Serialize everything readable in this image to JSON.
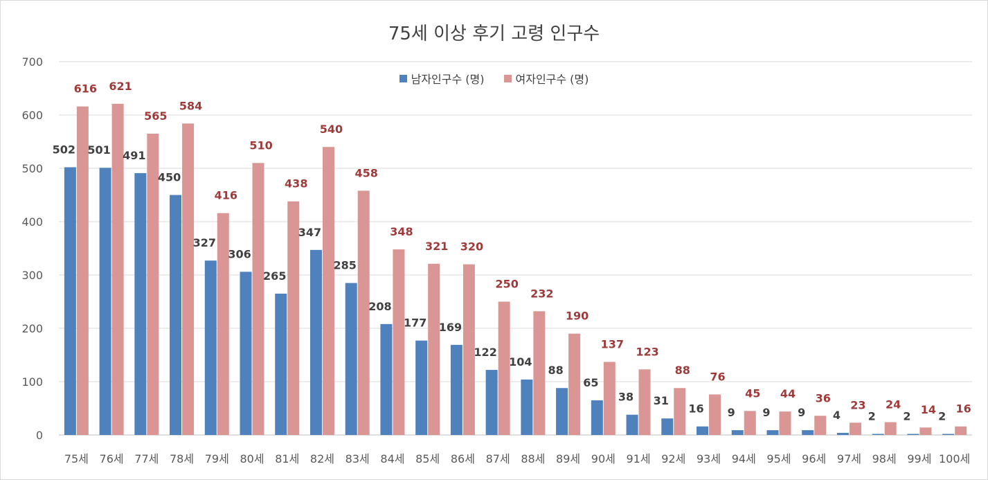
{
  "chart_data": {
    "type": "bar",
    "title": "75세 이상 후기 고령 인구수",
    "xlabel": "",
    "ylabel": "",
    "ylim": [
      0,
      700
    ],
    "yticks": [
      0,
      100,
      200,
      300,
      400,
      500,
      600,
      700
    ],
    "grid": true,
    "legend_position": "top-center",
    "categories": [
      "75세",
      "76세",
      "77세",
      "78세",
      "79세",
      "80세",
      "81세",
      "82세",
      "83세",
      "84세",
      "85세",
      "86세",
      "87세",
      "88세",
      "89세",
      "90세",
      "91세",
      "92세",
      "93세",
      "94세",
      "95세",
      "96세",
      "97세",
      "98세",
      "99세",
      "100세"
    ],
    "series": [
      {
        "name": "남자인구수 (명)",
        "color": "#4f81bd",
        "label_color": "#404040",
        "values": [
          502,
          501,
          491,
          450,
          327,
          306,
          265,
          347,
          285,
          208,
          177,
          169,
          122,
          104,
          88,
          65,
          38,
          31,
          16,
          9,
          9,
          9,
          4,
          2,
          2,
          2
        ]
      },
      {
        "name": "여자인구수 (명)",
        "color": "#d99694",
        "label_color": "#9e3a3a",
        "values": [
          616,
          621,
          565,
          584,
          416,
          510,
          438,
          540,
          458,
          348,
          321,
          320,
          250,
          232,
          190,
          137,
          123,
          88,
          76,
          45,
          44,
          36,
          23,
          24,
          14,
          16
        ]
      }
    ]
  }
}
